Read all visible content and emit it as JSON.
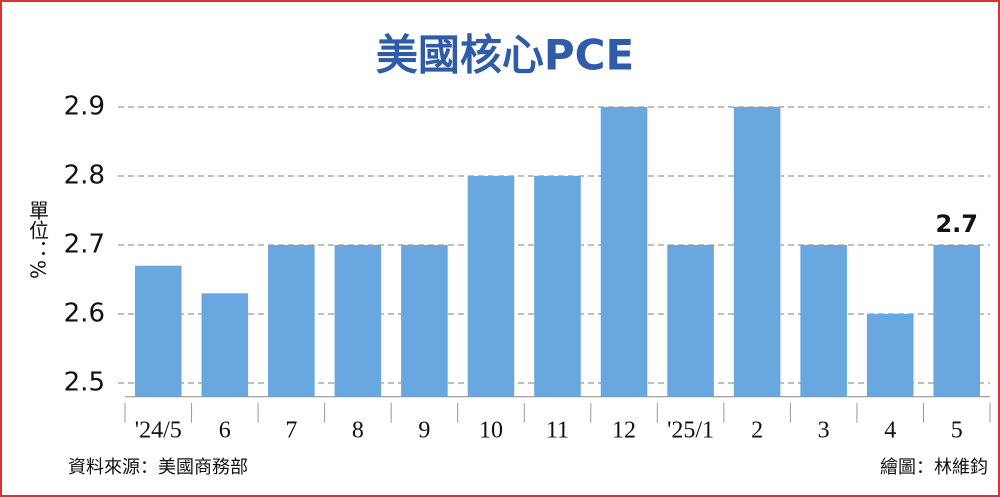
{
  "chart_data": {
    "type": "bar",
    "title": "美國核心PCE",
    "y_label": "單位：%",
    "categories": [
      "'24/5",
      "6",
      "7",
      "8",
      "9",
      "10",
      "11",
      "12",
      "'25/1",
      "2",
      "3",
      "4",
      "5"
    ],
    "values": [
      2.67,
      2.63,
      2.7,
      2.7,
      2.7,
      2.8,
      2.8,
      2.9,
      2.7,
      2.9,
      2.7,
      2.6,
      2.7
    ],
    "color": "#68a7e0",
    "ylim": [
      2.48,
      2.92
    ],
    "yticks": [
      2.5,
      2.6,
      2.7,
      2.8,
      2.9
    ],
    "grid": true,
    "source": "資料來源：美國商務部",
    "credit": "繪圖：林維鈞"
  }
}
